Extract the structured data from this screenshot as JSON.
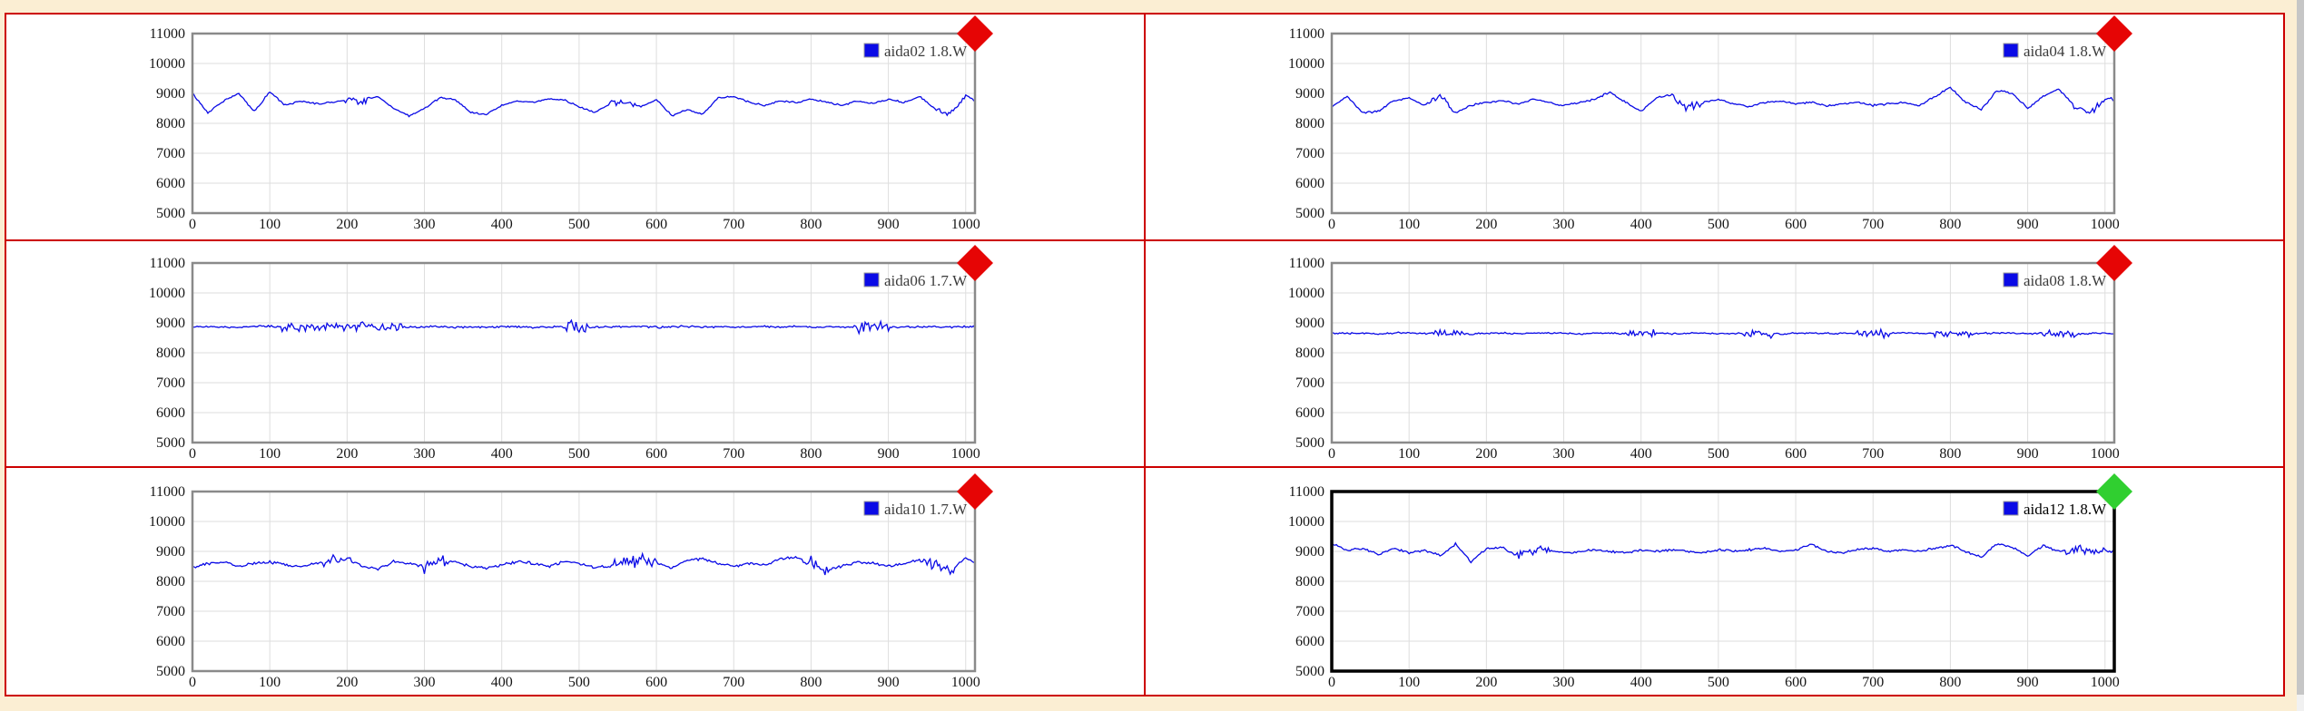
{
  "colors": {
    "page_bg": "#FBEED3",
    "frame_red": "#CC0000",
    "cell_bg": "#FFFFFF",
    "plot_border": "#8A8A8A",
    "selected_plot_border": "#000000",
    "grid": "#DEDEDE",
    "series_line": "#0A0AE6",
    "legend_swatch": "#0A0AE6",
    "legend_swatch_border": "#999999",
    "legend_text": "#3C3C3C",
    "selected_legend_text": "#000000",
    "tick_text": "#151515",
    "diamond_red": "#E60505",
    "diamond_green": "#30CF30",
    "scroll_track": "#F1F1F1",
    "scroll_thumb": "#C6C6C6"
  },
  "scrollbar": {
    "orientation": "vertical",
    "thumb_top": 0,
    "thumb_height": 766
  },
  "chart_data": {
    "type": "line",
    "axes": {
      "x_range": [
        0,
        1012
      ],
      "y_range": [
        5000,
        11000
      ],
      "x_ticks": [
        0,
        100,
        200,
        300,
        400,
        500,
        600,
        700,
        800,
        900,
        1000
      ],
      "y_ticks": [
        5000,
        6000,
        7000,
        8000,
        9000,
        10000,
        11000
      ],
      "grid": true,
      "legend_position": "top-right"
    },
    "panels": [
      {
        "id": "aida02",
        "legend": "aida02 1.8.W",
        "indicator": "red",
        "selected": false,
        "x_start": 0,
        "x_step": 20,
        "noise_amp": 35,
        "values": [
          9000,
          8350,
          8750,
          9000,
          8400,
          9050,
          8600,
          8750,
          8650,
          8700,
          8800,
          8750,
          8900,
          8500,
          8250,
          8500,
          8850,
          8800,
          8350,
          8300,
          8600,
          8750,
          8700,
          8800,
          8800,
          8550,
          8350,
          8650,
          8700,
          8550,
          8800,
          8250,
          8450,
          8300,
          8850,
          8900,
          8700,
          8600,
          8750,
          8700,
          8800,
          8700,
          8600,
          8750,
          8650,
          8800,
          8700,
          8900,
          8450,
          8300,
          8950,
          8600
        ],
        "bursts": [
          [
            195,
            235,
            100
          ],
          [
            540,
            575,
            90
          ],
          [
            940,
            1000,
            80
          ]
        ]
      },
      {
        "id": "aida04",
        "legend": "aida04 1.8.W",
        "indicator": "red",
        "selected": false,
        "x_start": 0,
        "x_step": 20,
        "noise_amp": 40,
        "values": [
          8550,
          8900,
          8350,
          8400,
          8750,
          8850,
          8600,
          8950,
          8350,
          8600,
          8700,
          8750,
          8650,
          8800,
          8700,
          8600,
          8700,
          8800,
          9050,
          8700,
          8400,
          8850,
          8950,
          8500,
          8700,
          8800,
          8650,
          8550,
          8700,
          8750,
          8650,
          8700,
          8600,
          8650,
          8700,
          8600,
          8650,
          8700,
          8600,
          8900,
          9200,
          8700,
          8450,
          9100,
          9000,
          8500,
          8900,
          9150,
          8600,
          8350,
          8800,
          8850
        ],
        "bursts": [
          [
            130,
            160,
            90
          ],
          [
            440,
            480,
            120
          ],
          [
            960,
            1012,
            110
          ]
        ]
      },
      {
        "id": "aida06",
        "legend": "aida06 1.7.W",
        "indicator": "red",
        "selected": false,
        "x_start": 0,
        "x_step": 20,
        "noise_amp": 40,
        "values": [
          8880,
          8860,
          8870,
          8850,
          8880,
          8890,
          8860,
          8850,
          8870,
          8880,
          8860,
          8870,
          8850,
          8880,
          8860,
          8870,
          8880,
          8850,
          8870,
          8860,
          8880,
          8870,
          8850,
          8860,
          8870,
          8880,
          8850,
          8870,
          8860,
          8880,
          8850,
          8870,
          8880,
          8860,
          8870,
          8850,
          8880,
          8870,
          8860,
          8880,
          8850,
          8870,
          8860,
          8880,
          8870,
          8850,
          8860,
          8870,
          8880,
          8860,
          8870,
          8860
        ],
        "bursts": [
          [
            115,
            270,
            150
          ],
          [
            480,
            510,
            270
          ],
          [
            860,
            900,
            250
          ]
        ]
      },
      {
        "id": "aida08",
        "legend": "aida08 1.8.W",
        "indicator": "red",
        "selected": false,
        "x_start": 0,
        "x_step": 20,
        "noise_amp": 35,
        "values": [
          8660,
          8640,
          8650,
          8630,
          8660,
          8670,
          8640,
          8650,
          8660,
          8630,
          8650,
          8660,
          8640,
          8650,
          8670,
          8650,
          8630,
          8660,
          8650,
          8640,
          8660,
          8650,
          8630,
          8650,
          8660,
          8640,
          8650,
          8660,
          8650,
          8630,
          8660,
          8650,
          8640,
          8650,
          8660,
          8630,
          8650,
          8660,
          8640,
          8660,
          8650,
          8630,
          8650,
          8660,
          8650,
          8640,
          8660,
          8650,
          8630,
          8650,
          8660,
          8640
        ],
        "bursts": [
          [
            130,
            168,
            120
          ],
          [
            380,
            420,
            120
          ],
          [
            530,
            570,
            130
          ],
          [
            680,
            720,
            140
          ],
          [
            780,
            830,
            130
          ],
          [
            920,
            962,
            140
          ]
        ]
      },
      {
        "id": "aida10",
        "legend": "aida10 1.7.W",
        "indicator": "red",
        "selected": false,
        "x_start": 0,
        "x_step": 20,
        "noise_amp": 55,
        "values": [
          8450,
          8600,
          8650,
          8500,
          8600,
          8650,
          8550,
          8500,
          8600,
          8700,
          8750,
          8500,
          8400,
          8650,
          8600,
          8500,
          8700,
          8650,
          8500,
          8450,
          8550,
          8650,
          8600,
          8500,
          8650,
          8600,
          8450,
          8500,
          8600,
          8700,
          8600,
          8450,
          8700,
          8750,
          8600,
          8500,
          8600,
          8550,
          8750,
          8800,
          8600,
          8400,
          8500,
          8650,
          8600,
          8500,
          8600,
          8700,
          8550,
          8300,
          8800,
          8550
        ],
        "bursts": [
          [
            170,
            205,
            170
          ],
          [
            295,
            330,
            200
          ],
          [
            545,
            600,
            180
          ],
          [
            790,
            830,
            200
          ],
          [
            945,
            985,
            160
          ]
        ]
      },
      {
        "id": "aida12",
        "legend": "aida12 1.8.W",
        "indicator": "green",
        "selected": true,
        "x_start": 0,
        "x_step": 20,
        "noise_amp": 45,
        "values": [
          9250,
          9050,
          9100,
          8900,
          9100,
          8950,
          9050,
          8850,
          9250,
          8650,
          9100,
          9150,
          8850,
          9000,
          9050,
          8950,
          9000,
          9050,
          9000,
          8950,
          9050,
          9000,
          9050,
          9000,
          8950,
          9050,
          9000,
          9050,
          9100,
          9000,
          9050,
          9250,
          9000,
          8950,
          9050,
          9100,
          9000,
          9050,
          9000,
          9100,
          9200,
          9000,
          8800,
          9250,
          9150,
          8850,
          9200,
          9000,
          9100,
          8950,
          9050,
          9000
        ],
        "bursts": [
          [
            240,
            280,
            140
          ],
          [
            950,
            1012,
            140
          ]
        ]
      }
    ]
  }
}
